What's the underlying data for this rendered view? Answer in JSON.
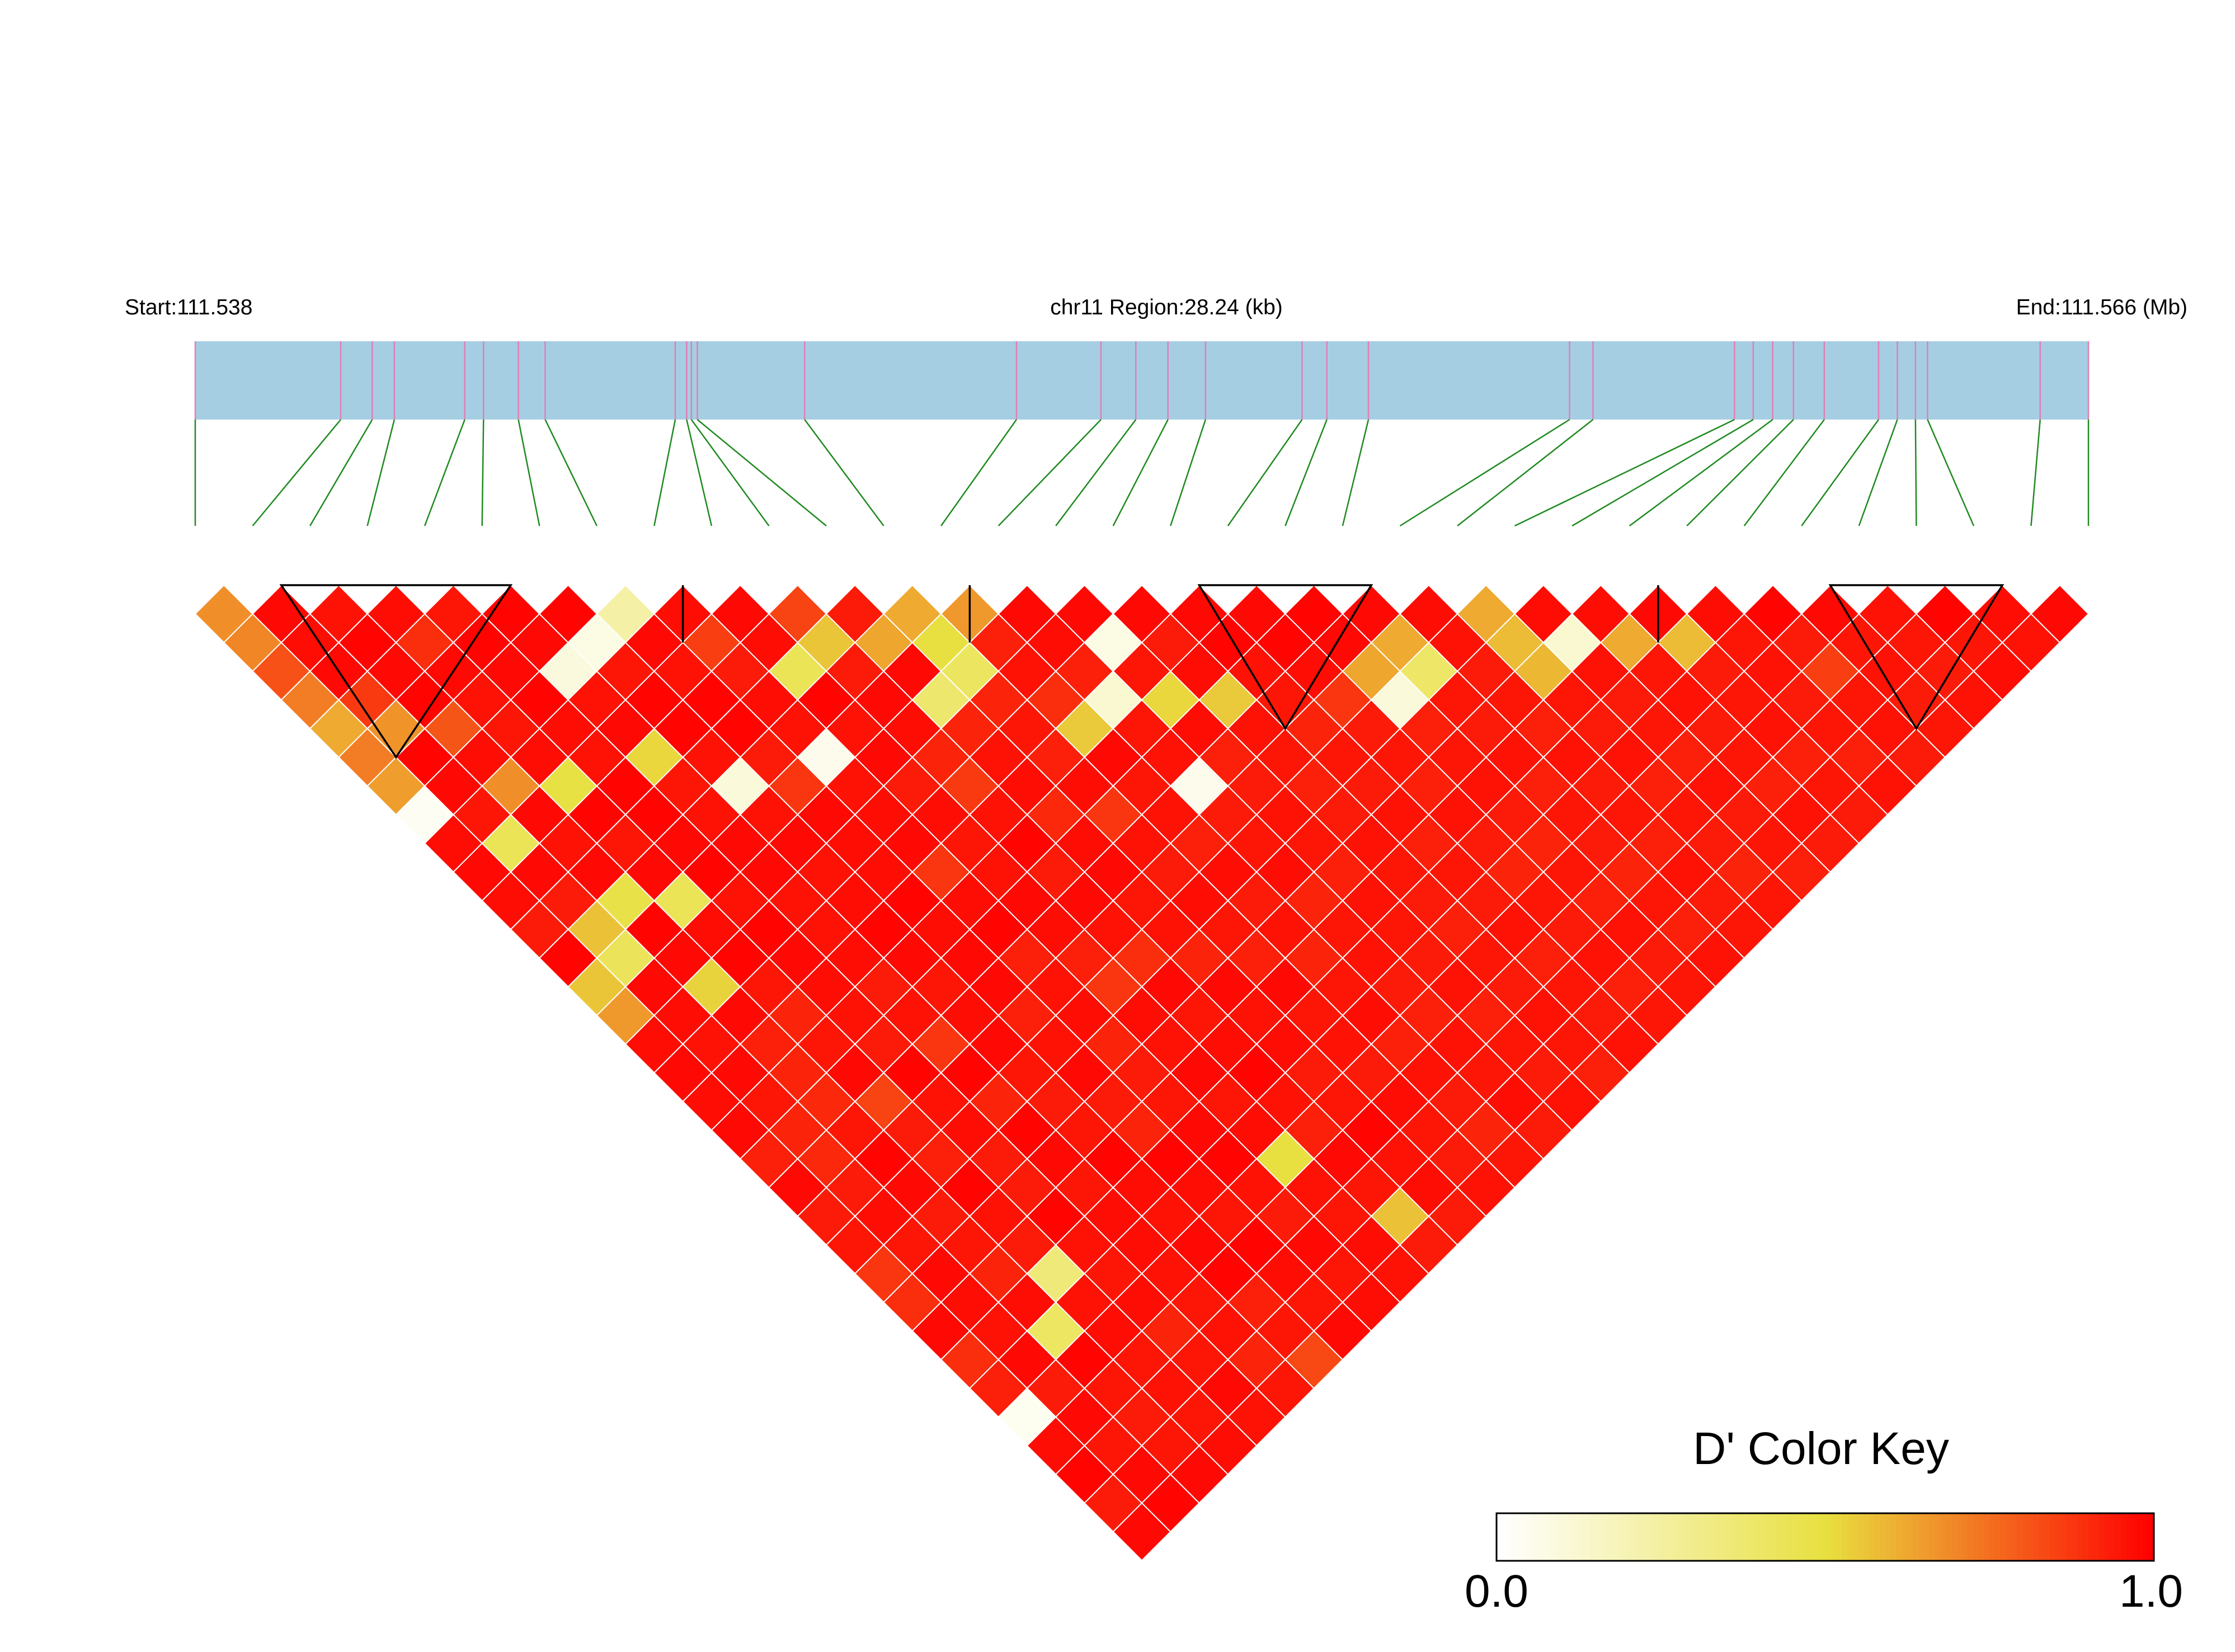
{
  "header": {
    "start_label": "Start:111.538",
    "region_label": "chr11 Region:28.24 (kb)",
    "end_label": "End:111.566 (Mb)"
  },
  "colors": {
    "gene_bar": "#a6cee3",
    "snp_tick": "#e07fb7",
    "connector_line": "#1f8a1f",
    "block_outline": "#000000",
    "grid_line": "#ffffff",
    "scale": [
      "#ffffff",
      "#e8e040",
      "#ff0000"
    ]
  },
  "chart_data": {
    "type": "heatmap",
    "measure": "D'",
    "snp_count": 34,
    "snp_positions_kb": [
      0.0,
      2.17,
      2.64,
      2.97,
      4.02,
      4.3,
      4.82,
      5.22,
      7.16,
      7.33,
      7.4,
      7.49,
      9.09,
      12.25,
      13.51,
      14.03,
      14.51,
      15.07,
      16.51,
      16.88,
      17.5,
      20.5,
      20.85,
      22.96,
      23.24,
      23.53,
      23.84,
      24.3,
      25.11,
      25.39,
      25.66,
      25.84,
      27.52,
      28.24
    ],
    "ld_blocks": [
      [
        2,
        7
      ],
      [
        9,
        10
      ],
      [
        14,
        15
      ],
      [
        18,
        22
      ],
      [
        26,
        27
      ],
      [
        29,
        33
      ]
    ],
    "dprime": [
      [
        0.68,
        0.7,
        0.82,
        0.72,
        0.62,
        0.72,
        0.65,
        0.03,
        0.97,
        0.98,
        0.97,
        0.94,
        0.99,
        0.56,
        0.66,
        0.97,
        0.98,
        0.97,
        0.98,
        0.93,
        0.98,
        0.94,
        0.95,
        0.88,
        0.9,
        0.98,
        0.9,
        0.93,
        0.04,
        0.97,
        0.99,
        0.94,
        0.98
      ],
      [
        0.98,
        0.97,
        0.98,
        0.87,
        0.67,
        0.99,
        0.98,
        0.95,
        0.44,
        0.98,
        0.94,
        0.57,
        0.43,
        0.98,
        0.97,
        0.96,
        0.98,
        0.95,
        0.92,
        0.91,
        0.94,
        0.97,
        0.95,
        0.98,
        0.97,
        0.96,
        0.98,
        0.94,
        0.98,
        0.95,
        0.98,
        0.99
      ],
      [
        0.96,
        0.99,
        0.98,
        0.99,
        0.81,
        0.97,
        0.68,
        0.98,
        0.96,
        0.98,
        0.48,
        0.99,
        0.98,
        0.53,
        0.98,
        0.93,
        0.92,
        0.91,
        0.95,
        0.99,
        0.98,
        0.94,
        0.95,
        0.92,
        0.97,
        0.41,
        0.99,
        0.95,
        0.94,
        0.95,
        0.98
      ],
      [
        0.97,
        0.9,
        0.98,
        0.96,
        0.95,
        0.97,
        0.49,
        0.99,
        0.95,
        0.98,
        0.44,
        0.97,
        0.99,
        0.95,
        0.92,
        0.95,
        0.98,
        0.85,
        0.94,
        0.93,
        0.99,
        0.96,
        0.94,
        0.35,
        0.96,
        0.97,
        0.95,
        0.96,
        0.95,
        0.97
      ],
      [
        0.95,
        0.99,
        0.98,
        0.99,
        0.97,
        0.96,
        0.99,
        0.99,
        0.98,
        0.99,
        0.96,
        0.99,
        0.98,
        0.97,
        0.96,
        0.94,
        0.99,
        0.96,
        0.97,
        0.94,
        0.94,
        0.99,
        0.96,
        0.95,
        0.97,
        0.92,
        0.95,
        0.98,
        0.96
      ],
      [
        0.99,
        0.98,
        0.09,
        0.96,
        0.98,
        0.52,
        0.95,
        0.96,
        0.98,
        0.98,
        0.96,
        0.96,
        0.97,
        0.94,
        0.96,
        0.88,
        0.99,
        0.92,
        0.99,
        0.98,
        0.95,
        0.97,
        0.97,
        0.96,
        0.95,
        0.96,
        0.92,
        0.95
      ],
      [
        0.99,
        0.07,
        0.95,
        0.99,
        0.99,
        0.96,
        0.1,
        0.96,
        0.98,
        0.96,
        0.97,
        0.99,
        0.98,
        0.95,
        0.97,
        0.98,
        0.95,
        0.94,
        0.95,
        0.99,
        0.97,
        0.96,
        0.98,
        0.99,
        0.93,
        0.95,
        0.84
      ],
      [
        0.23,
        0.98,
        0.96,
        0.99,
        0.99,
        0.94,
        0.88,
        0.98,
        0.97,
        0.97,
        0.99,
        0.97,
        0.98,
        0.98,
        0.93,
        0.96,
        0.98,
        0.94,
        0.92,
        0.99,
        0.97,
        0.95,
        0.99,
        0.97,
        0.95,
        0.98
      ],
      [
        0.97,
        0.86,
        0.94,
        0.97,
        0.96,
        0.05,
        0.96,
        0.97,
        0.98,
        0.88,
        0.97,
        0.99,
        0.93,
        0.96,
        0.97,
        0.92,
        0.94,
        0.95,
        0.98,
        0.99,
        0.96,
        0.94,
        0.98,
        0.95,
        0.97
      ],
      [
        0.98,
        0.97,
        0.44,
        0.99,
        0.96,
        0.98,
        0.94,
        0.97,
        0.95,
        0.96,
        0.98,
        0.97,
        0.93,
        0.88,
        0.97,
        0.96,
        0.98,
        0.95,
        0.97,
        0.5,
        0.96,
        0.95,
        0.97,
        0.96
      ],
      [
        0.85,
        0.56,
        0.94,
        0.98,
        0.97,
        0.92,
        0.87,
        0.96,
        0.99,
        0.94,
        0.98,
        0.96,
        0.9,
        0.98,
        0.95,
        0.97,
        0.99,
        0.96,
        0.93,
        0.98,
        0.95,
        0.57,
        0.94
      ],
      [
        0.94,
        0.63,
        0.98,
        0.38,
        0.92,
        0.96,
        0.97,
        0.91,
        0.97,
        0.98,
        0.95,
        0.96,
        0.92,
        0.98,
        0.96,
        0.97,
        0.94,
        0.95,
        0.99,
        0.96,
        0.97,
        0.94
      ],
      [
        0.62,
        0.5,
        0.42,
        0.92,
        0.95,
        0.93,
        0.97,
        0.88,
        0.96,
        0.94,
        0.97,
        0.95,
        0.93,
        0.98,
        0.95,
        0.96,
        0.94,
        0.97,
        0.95,
        0.94,
        0.96
      ],
      [
        0.66,
        0.93,
        0.96,
        0.9,
        0.55,
        0.98,
        0.95,
        0.96,
        0.93,
        0.97,
        0.94,
        0.96,
        0.92,
        0.95,
        0.97,
        0.93,
        0.96,
        0.94,
        0.92,
        0.95
      ],
      [
        0.98,
        0.97,
        0.93,
        0.12,
        0.95,
        0.96,
        0.05,
        0.94,
        0.95,
        0.97,
        0.92,
        0.95,
        0.96,
        0.94,
        0.93,
        0.96,
        0.95,
        0.97,
        0.94
      ],
      [
        0.98,
        0.07,
        0.95,
        0.52,
        0.97,
        0.93,
        0.94,
        0.96,
        0.95,
        0.93,
        0.96,
        0.95,
        0.94,
        0.96,
        0.93,
        0.95,
        0.94,
        0.96
      ],
      [
        0.98,
        0.94,
        0.97,
        0.55,
        0.96,
        0.95,
        0.93,
        0.94,
        0.96,
        0.95,
        0.94,
        0.93,
        0.95,
        0.94,
        0.96,
        0.95,
        0.93
      ],
      [
        0.98,
        0.99,
        0.96,
        0.95,
        0.92,
        0.95,
        0.94,
        0.96,
        0.93,
        0.95,
        0.94,
        0.96,
        0.93,
        0.95,
        0.94,
        0.96
      ],
      [
        0.98,
        0.99,
        0.97,
        0.88,
        0.94,
        0.95,
        0.93,
        0.96,
        0.94,
        0.92,
        0.95,
        0.94,
        0.96,
        0.93,
        0.95
      ],
      [
        0.99,
        0.98,
        0.63,
        0.1,
        0.93,
        0.95,
        0.96,
        0.94,
        0.92,
        0.95,
        0.93,
        0.96,
        0.94,
        0.95
      ],
      [
        0.98,
        0.62,
        0.4,
        0.95,
        0.94,
        0.96,
        0.93,
        0.95,
        0.94,
        0.92,
        0.95,
        0.93,
        0.96
      ],
      [
        0.97,
        0.96,
        0.94,
        0.95,
        0.93,
        0.96,
        0.94,
        0.95,
        0.93,
        0.96,
        0.94,
        0.95
      ],
      [
        0.62,
        0.58,
        0.59,
        0.95,
        0.94,
        0.96,
        0.93,
        0.95,
        0.94,
        0.92,
        0.95
      ],
      [
        0.97,
        0.12,
        0.96,
        0.94,
        0.95,
        0.93,
        0.96,
        0.94,
        0.95,
        0.93
      ],
      [
        0.97,
        0.62,
        0.95,
        0.96,
        0.94,
        0.95,
        0.93,
        0.96,
        0.94
      ],
      [
        0.98,
        0.58,
        0.94,
        0.95,
        0.96,
        0.93,
        0.95,
        0.94
      ],
      [
        0.97,
        0.95,
        0.96,
        0.94,
        0.95,
        0.93,
        0.96
      ],
      [
        0.99,
        0.94,
        0.86,
        0.95,
        0.96,
        0.94
      ],
      [
        0.98,
        0.95,
        0.96,
        0.94,
        0.95
      ],
      [
        0.96,
        0.95,
        0.94,
        0.96
      ],
      [
        0.99,
        0.95,
        0.97
      ],
      [
        0.97,
        0.96
      ],
      [
        0.98
      ]
    ],
    "color_key": {
      "title": "D' Color Key",
      "min_label": "0.0",
      "max_label": "1.0",
      "range": [
        0.0,
        1.0
      ]
    }
  }
}
